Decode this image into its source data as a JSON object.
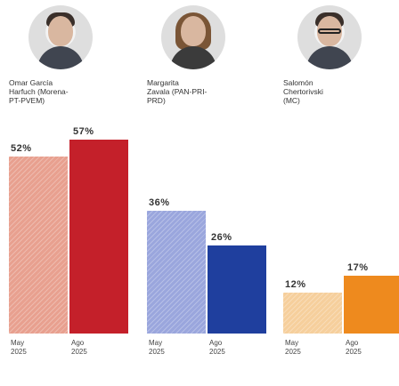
{
  "chart_data": {
    "type": "bar",
    "title": "",
    "xlabel": "",
    "ylabel": "",
    "ylim": [
      0,
      60
    ],
    "candidates": [
      {
        "name": "Omar García\nHarfuch (Morena-\nPT-PVEM)",
        "photo_icon": "candidate-photo-male",
        "bars": [
          {
            "x": "May\n2025",
            "value": 52,
            "label": "52%",
            "color": "#e8a08f"
          },
          {
            "x": "Ago\n2025",
            "value": 57,
            "label": "57%",
            "color": "#c4202a"
          }
        ]
      },
      {
        "name": "Margarita\nZavala (PAN-PRI-\nPRD)",
        "photo_icon": "candidate-photo-female",
        "bars": [
          {
            "x": "May\n2025",
            "value": 36,
            "label": "36%",
            "color": "#9aa6dd"
          },
          {
            "x": "Ago\n2025",
            "value": 26,
            "label": "26%",
            "color": "#1f3f9e"
          }
        ]
      },
      {
        "name": "Salomón\nChertorivski\n(MC)",
        "photo_icon": "candidate-photo-male-glasses",
        "bars": [
          {
            "x": "May\n2025",
            "value": 12,
            "label": "12%",
            "color": "#f6cf9c"
          },
          {
            "x": "Ago\n2025",
            "value": 17,
            "label": "17%",
            "color": "#ee8a1e"
          }
        ]
      }
    ]
  }
}
